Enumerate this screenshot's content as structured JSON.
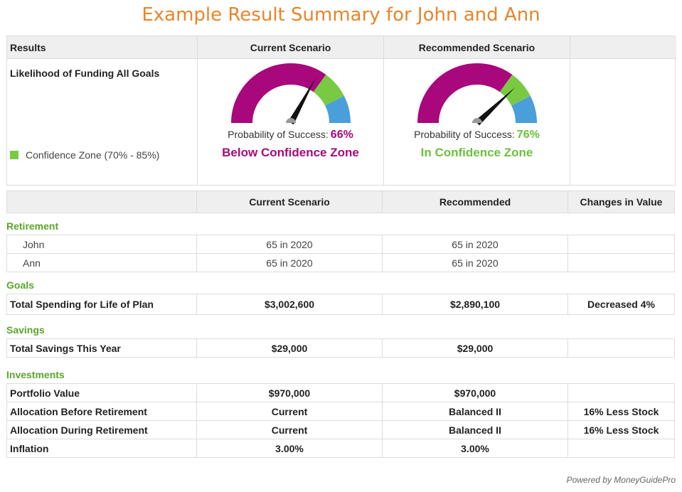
{
  "title": "Example Result Summary for John and Ann",
  "results": {
    "headers": {
      "results": "Results",
      "current": "Current Scenario",
      "recommended": "Recommended Scenario"
    },
    "row_label": "Likelihood of Funding All Goals",
    "legend": "Confidence Zone (70% - 85%)",
    "current": {
      "prob_label": "Probability of Success:",
      "prob_value": "66%",
      "probability": 66,
      "zone": "Below Confidence Zone"
    },
    "recommended": {
      "prob_label": "Probability of Success:",
      "prob_value": "76%",
      "probability": 76,
      "zone": "In Confidence Zone"
    },
    "colors": {
      "below": "#a8087c",
      "confidence": "#7ac943",
      "above": "#4a9fdb",
      "needle": "#111111"
    }
  },
  "details": {
    "headers": {
      "current": "Current Scenario",
      "recommended": "Recommended",
      "changes": "Changes in Value"
    },
    "sections": {
      "retirement": "Retirement",
      "goals": "Goals",
      "savings": "Savings",
      "investments": "Investments"
    },
    "retirement": [
      {
        "label": "John",
        "current": "65 in 2020",
        "recommended": "65 in 2020",
        "change": ""
      },
      {
        "label": "Ann",
        "current": "65 in 2020",
        "recommended": "65 in 2020",
        "change": ""
      }
    ],
    "goals": [
      {
        "label": "Total Spending for Life of Plan",
        "current": "$3,002,600",
        "recommended": "$2,890,100",
        "change": "Decreased 4%"
      }
    ],
    "savings": [
      {
        "label": "Total Savings This Year",
        "current": "$29,000",
        "recommended": "$29,000",
        "change": ""
      }
    ],
    "investments": [
      {
        "label": "Portfolio Value",
        "current": "$970,000",
        "recommended": "$970,000",
        "change": ""
      },
      {
        "label": "Allocation Before Retirement",
        "current": "Current",
        "recommended": "Balanced II",
        "change": "16% Less Stock"
      },
      {
        "label": "Allocation During Retirement",
        "current": "Current",
        "recommended": "Balanced II",
        "change": "16% Less Stock"
      },
      {
        "label": "Inflation",
        "current": "3.00%",
        "recommended": "3.00%",
        "change": ""
      }
    ]
  },
  "footer": "Powered by MoneyGuidePro"
}
